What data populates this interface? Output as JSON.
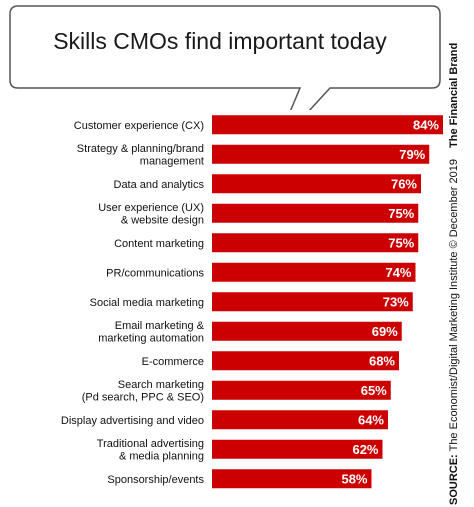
{
  "chart_data": {
    "type": "bar",
    "orientation": "horizontal",
    "title": "Skills CMOs find important today",
    "categories": [
      [
        "Customer experience (CX)"
      ],
      [
        "Strategy & planning/brand",
        "management"
      ],
      [
        "Data and analytics"
      ],
      [
        "User experience (UX)",
        "& website design"
      ],
      [
        "Content marketing"
      ],
      [
        "PR/communications"
      ],
      [
        "Social media marketing"
      ],
      [
        "Email marketing &",
        "marketing automation"
      ],
      [
        "E-commerce"
      ],
      [
        "Search marketing",
        "(Pd search, PPC & SEO)"
      ],
      [
        "Display advertising and video"
      ],
      [
        "Traditional advertising",
        "& media planning"
      ],
      [
        "Sponsorship/events"
      ]
    ],
    "values": [
      84,
      79,
      76,
      75,
      75,
      74,
      73,
      69,
      68,
      65,
      64,
      62,
      58
    ],
    "value_labels": [
      "84%",
      "79%",
      "76%",
      "75%",
      "75%",
      "74%",
      "73%",
      "69%",
      "68%",
      "65%",
      "64%",
      "62%",
      "58%"
    ],
    "xlim": [
      0,
      84
    ],
    "bar_color": "#cc0000",
    "grid": false,
    "legend": "none"
  },
  "source": {
    "label": "SOURCE:",
    "text": "The Economist/Digital Marketing Institute © December 2019",
    "brand": "The Financial Brand"
  }
}
